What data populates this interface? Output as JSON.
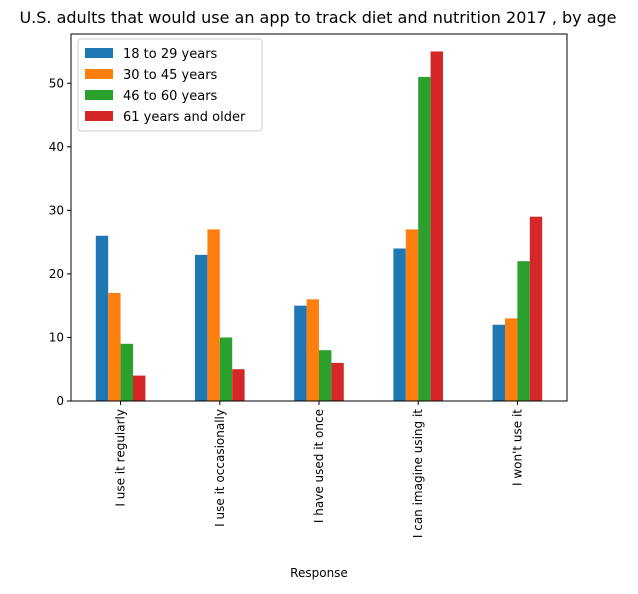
{
  "chart_data": {
    "type": "bar",
    "title": "U.S. adults that would use an app to track diet and nutrition 2017 , by age",
    "xlabel": "Response",
    "ylabel": "",
    "categories": [
      "I use it regularly",
      "I use it occasionally",
      "I have used it once",
      "I can imagine using it",
      "I won't use it"
    ],
    "series": [
      {
        "name": "18 to 29 years",
        "color": "#1f77b4",
        "values": [
          26,
          23,
          15,
          24,
          12
        ]
      },
      {
        "name": "30 to 45 years",
        "color": "#ff7f0e",
        "values": [
          17,
          27,
          16,
          27,
          13
        ]
      },
      {
        "name": "46 to 60 years",
        "color": "#2ca02c",
        "values": [
          9,
          10,
          8,
          51,
          22
        ]
      },
      {
        "name": "61 years and older",
        "color": "#d62728",
        "values": [
          4,
          5,
          6,
          55,
          29
        ]
      }
    ],
    "ylim": [
      0,
      57.75
    ],
    "yticks": [
      0,
      10,
      20,
      30,
      40,
      50
    ],
    "grid": false,
    "legend_position": "top-left"
  }
}
